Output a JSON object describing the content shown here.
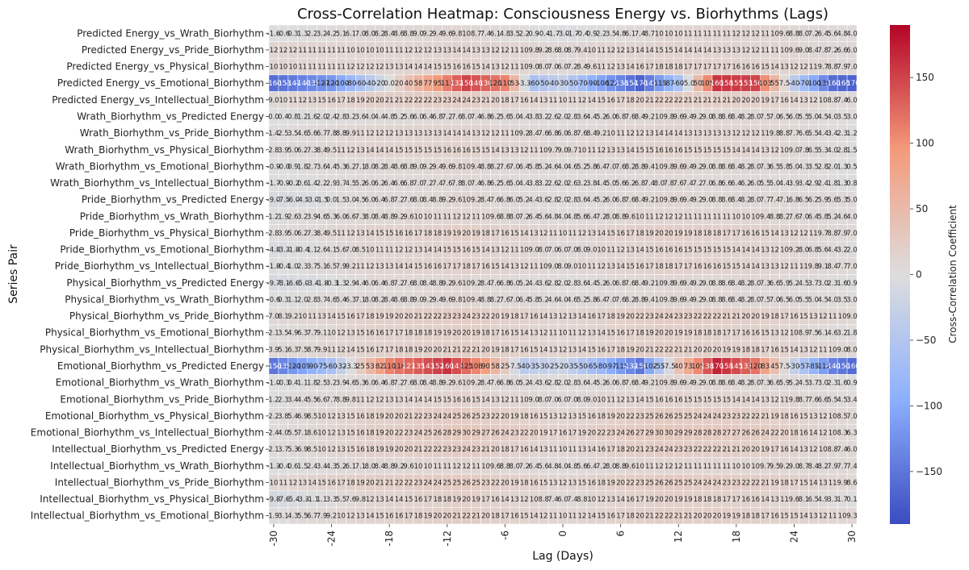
{
  "chart_data": {
    "type": "heatmap",
    "title": "Cross-Correlation Heatmap: Consciousness Energy vs. Biorhythms (Lags)",
    "xlabel": "Lag (Days)",
    "ylabel": "Series Pair",
    "colorbar_label": "Cross-Correlation Coefficient",
    "colormap": "coolwarm",
    "vmin": -190,
    "vmax": 190,
    "colorbar_ticks": [
      -150,
      -100,
      -50,
      0,
      50,
      100,
      150
    ],
    "x_tick_labels": [
      -30,
      -24,
      -18,
      -12,
      -6,
      0,
      6,
      12,
      18,
      24,
      30
    ],
    "lags": [
      -30,
      30
    ],
    "rows": [
      {
        "name": "Predicted Energy_vs_Wrath_Biorhythm",
        "anchors": [
          [
            -30,
            -1.6
          ],
          [
            -20,
            8
          ],
          [
            -10,
            10
          ],
          [
            0,
            -3
          ],
          [
            10,
            10
          ],
          [
            20,
            12
          ],
          [
            30,
            4
          ]
        ]
      },
      {
        "name": "Predicted Energy_vs_Pride_Biorhythm",
        "anchors": [
          [
            -30,
            12
          ],
          [
            -20,
            10
          ],
          [
            -10,
            14
          ],
          [
            0,
            8
          ],
          [
            10,
            15
          ],
          [
            20,
            12
          ],
          [
            30,
            6
          ]
        ]
      },
      {
        "name": "Predicted Energy_vs_Physical_Biorhythm",
        "anchors": [
          [
            -30,
            10
          ],
          [
            -20,
            12
          ],
          [
            -10,
            16
          ],
          [
            0,
            6
          ],
          [
            10,
            18
          ],
          [
            20,
            16
          ],
          [
            30,
            7
          ]
        ]
      },
      {
        "name": "Predicted Energy_vs_Emotional_Biorhythm",
        "anchors": [
          [
            -30,
            -160
          ],
          [
            -24,
            -120
          ],
          [
            -16,
            40
          ],
          [
            -10,
            150
          ],
          [
            -6,
            110
          ],
          [
            -3,
            -60
          ],
          [
            0,
            -30
          ],
          [
            3,
            -90
          ],
          [
            8,
            -170
          ],
          [
            12,
            -60
          ],
          [
            16,
            160
          ],
          [
            20,
            150
          ],
          [
            24,
            -40
          ],
          [
            28,
            -160
          ],
          [
            30,
            -170
          ]
        ]
      },
      {
        "name": "Predicted Energy_vs_Intellectual_Biorhythm",
        "anchors": [
          [
            -30,
            9
          ],
          [
            -20,
            20
          ],
          [
            -10,
            24
          ],
          [
            0,
            10
          ],
          [
            10,
            22
          ],
          [
            20,
            20
          ],
          [
            30,
            6
          ]
        ]
      },
      {
        "name": "Wrath_Biorhythm_vs_Predicted Energy",
        "anchors": [
          [
            -30,
            0
          ],
          [
            -20,
            4
          ],
          [
            -10,
            8
          ],
          [
            0,
            2
          ],
          [
            10,
            10
          ],
          [
            20,
            8
          ],
          [
            30,
            3
          ]
        ]
      },
      {
        "name": "Wrath_Biorhythm_vs_Pride_Biorhythm",
        "anchors": [
          [
            -30,
            1.4
          ],
          [
            -20,
            12
          ],
          [
            -10,
            14
          ],
          [
            0,
            6
          ],
          [
            10,
            14
          ],
          [
            20,
            12
          ],
          [
            30,
            1.2
          ]
        ]
      },
      {
        "name": "Wrath_Biorhythm_vs_Physical_Biorhythm",
        "anchors": [
          [
            -30,
            2.8
          ],
          [
            -20,
            14
          ],
          [
            -10,
            16
          ],
          [
            0,
            9
          ],
          [
            10,
            16
          ],
          [
            20,
            14
          ],
          [
            30,
            1.5
          ]
        ]
      },
      {
        "name": "Wrath_Biorhythm_vs_Emotional_Biorhythm",
        "anchors": [
          [
            -30,
            -0.9
          ],
          [
            -20,
            8
          ],
          [
            -10,
            10
          ],
          [
            0,
            4
          ],
          [
            10,
            10
          ],
          [
            20,
            8
          ],
          [
            30,
            0.5
          ]
        ]
      },
      {
        "name": "Wrath_Biorhythm_vs_Intellectual_Biorhythm",
        "anchors": [
          [
            -30,
            -1.7
          ],
          [
            -20,
            6
          ],
          [
            -10,
            8
          ],
          [
            0,
            2
          ],
          [
            10,
            8
          ],
          [
            20,
            6
          ],
          [
            30,
            0.8
          ]
        ]
      },
      {
        "name": "Pride_Biorhythm_vs_Predicted Energy",
        "anchors": [
          [
            -30,
            -9
          ],
          [
            -20,
            6
          ],
          [
            -10,
            10
          ],
          [
            0,
            2
          ],
          [
            10,
            10
          ],
          [
            20,
            8
          ],
          [
            30,
            5
          ]
        ]
      },
      {
        "name": "Pride_Biorhythm_vs_Wrath_Biorhythm",
        "anchors": [
          [
            -30,
            1.2
          ],
          [
            -20,
            8
          ],
          [
            -10,
            12
          ],
          [
            0,
            4
          ],
          [
            10,
            12
          ],
          [
            20,
            10
          ],
          [
            30,
            4
          ]
        ]
      },
      {
        "name": "Pride_Biorhythm_vs_Physical_Biorhythm",
        "anchors": [
          [
            -30,
            2.8
          ],
          [
            -20,
            14
          ],
          [
            -10,
            20
          ],
          [
            0,
            10
          ],
          [
            10,
            20
          ],
          [
            20,
            16
          ],
          [
            30,
            7
          ]
        ]
      },
      {
        "name": "Pride_Biorhythm_vs_Emotional_Biorhythm",
        "anchors": [
          [
            -30,
            -4.8
          ],
          [
            -20,
            10
          ],
          [
            -10,
            16
          ],
          [
            0,
            6
          ],
          [
            10,
            16
          ],
          [
            20,
            14
          ],
          [
            30,
            2
          ]
        ]
      },
      {
        "name": "Pride_Biorhythm_vs_Intellectual_Biorhythm",
        "anchors": [
          [
            -30,
            -1.8
          ],
          [
            -20,
            12
          ],
          [
            -10,
            18
          ],
          [
            0,
            8
          ],
          [
            10,
            18
          ],
          [
            20,
            14
          ],
          [
            30,
            7
          ]
        ]
      },
      {
        "name": "Physical_Biorhythm_vs_Predicted Energy",
        "anchors": [
          [
            -30,
            -9.7
          ],
          [
            -20,
            6
          ],
          [
            -10,
            10
          ],
          [
            0,
            2
          ],
          [
            10,
            10
          ],
          [
            20,
            8
          ],
          [
            30,
            0.9
          ]
        ]
      },
      {
        "name": "Physical_Biorhythm_vs_Wrath_Biorhythm",
        "anchors": [
          [
            -30,
            -0.6
          ],
          [
            -20,
            8
          ],
          [
            -10,
            10
          ],
          [
            0,
            4
          ],
          [
            10,
            10
          ],
          [
            20,
            8
          ],
          [
            30,
            3
          ]
        ]
      },
      {
        "name": "Physical_Biorhythm_vs_Pride_Biorhythm",
        "anchors": [
          [
            -30,
            7
          ],
          [
            -20,
            18
          ],
          [
            -10,
            24
          ],
          [
            0,
            12
          ],
          [
            10,
            24
          ],
          [
            20,
            20
          ],
          [
            30,
            9
          ]
        ]
      },
      {
        "name": "Physical_Biorhythm_vs_Emotional_Biorhythm",
        "anchors": [
          [
            -30,
            2.1
          ],
          [
            -20,
            16
          ],
          [
            -10,
            20
          ],
          [
            0,
            10
          ],
          [
            10,
            20
          ],
          [
            20,
            16
          ],
          [
            30,
            1.8
          ]
        ]
      },
      {
        "name": "Physical_Biorhythm_vs_Intellectual_Biorhythm",
        "anchors": [
          [
            -30,
            3.9
          ],
          [
            -20,
            16
          ],
          [
            -10,
            22
          ],
          [
            0,
            12
          ],
          [
            10,
            22
          ],
          [
            20,
            18
          ],
          [
            30,
            8
          ]
        ]
      },
      {
        "name": "Emotional_Biorhythm_vs_Predicted Energy",
        "anchors": [
          [
            -30,
            -150
          ],
          [
            -24,
            -60
          ],
          [
            -18,
            110
          ],
          [
            -12,
            160
          ],
          [
            -8,
            90
          ],
          [
            -4,
            -40
          ],
          [
            0,
            -20
          ],
          [
            4,
            -80
          ],
          [
            8,
            -150
          ],
          [
            12,
            40
          ],
          [
            16,
            170
          ],
          [
            20,
            120
          ],
          [
            24,
            -30
          ],
          [
            28,
            -140
          ],
          [
            30,
            -160
          ]
        ]
      },
      {
        "name": "Emotional_Biorhythm_vs_Wrath_Biorhythm",
        "anchors": [
          [
            -30,
            -1.0
          ],
          [
            -20,
            6
          ],
          [
            -10,
            10
          ],
          [
            0,
            2
          ],
          [
            10,
            10
          ],
          [
            20,
            8
          ],
          [
            30,
            0.9
          ]
        ]
      },
      {
        "name": "Emotional_Biorhythm_vs_Pride_Biorhythm",
        "anchors": [
          [
            -30,
            1.2
          ],
          [
            -20,
            12
          ],
          [
            -10,
            16
          ],
          [
            0,
            6
          ],
          [
            10,
            16
          ],
          [
            20,
            14
          ],
          [
            30,
            3.4
          ]
        ]
      },
      {
        "name": "Emotional_Biorhythm_vs_Physical_Biorhythm",
        "anchors": [
          [
            -30,
            2.2
          ],
          [
            -20,
            18
          ],
          [
            -10,
            26
          ],
          [
            0,
            12
          ],
          [
            10,
            26
          ],
          [
            20,
            22
          ],
          [
            30,
            7
          ]
        ]
      },
      {
        "name": "Emotional_Biorhythm_vs_Intellectual_Biorhythm",
        "anchors": [
          [
            -30,
            2.4
          ],
          [
            -20,
            18
          ],
          [
            -10,
            30
          ],
          [
            0,
            16
          ],
          [
            10,
            30
          ],
          [
            20,
            26
          ],
          [
            30,
            6.3
          ]
        ]
      },
      {
        "name": "Intellectual_Biorhythm_vs_Predicted Energy",
        "anchors": [
          [
            -30,
            2.1
          ],
          [
            -20,
            18
          ],
          [
            -10,
            24
          ],
          [
            0,
            10
          ],
          [
            10,
            24
          ],
          [
            20,
            20
          ],
          [
            30,
            6
          ]
        ]
      },
      {
        "name": "Intellectual_Biorhythm_vs_Wrath_Biorhythm",
        "anchors": [
          [
            -30,
            -1.3
          ],
          [
            -20,
            8
          ],
          [
            -10,
            12
          ],
          [
            0,
            4
          ],
          [
            10,
            12
          ],
          [
            20,
            10
          ],
          [
            30,
            7.4
          ]
        ]
      },
      {
        "name": "Intellectual_Biorhythm_vs_Pride_Biorhythm",
        "anchors": [
          [
            -30,
            10
          ],
          [
            -20,
            20
          ],
          [
            -10,
            26
          ],
          [
            0,
            12
          ],
          [
            10,
            26
          ],
          [
            20,
            22
          ],
          [
            30,
            8.6
          ]
        ]
      },
      {
        "name": "Intellectual_Biorhythm_vs_Physical_Biorhythm",
        "anchors": [
          [
            -30,
            -9.8
          ],
          [
            -20,
            12
          ],
          [
            -10,
            20
          ],
          [
            0,
            6
          ],
          [
            10,
            20
          ],
          [
            20,
            16
          ],
          [
            30,
            0.1
          ]
        ]
      },
      {
        "name": "Intellectual_Biorhythm_vs_Emotional_Biorhythm",
        "anchors": [
          [
            -30,
            1.9
          ],
          [
            -20,
            14
          ],
          [
            -10,
            22
          ],
          [
            0,
            10
          ],
          [
            10,
            22
          ],
          [
            20,
            18
          ],
          [
            30,
            9.3
          ]
        ]
      }
    ]
  }
}
